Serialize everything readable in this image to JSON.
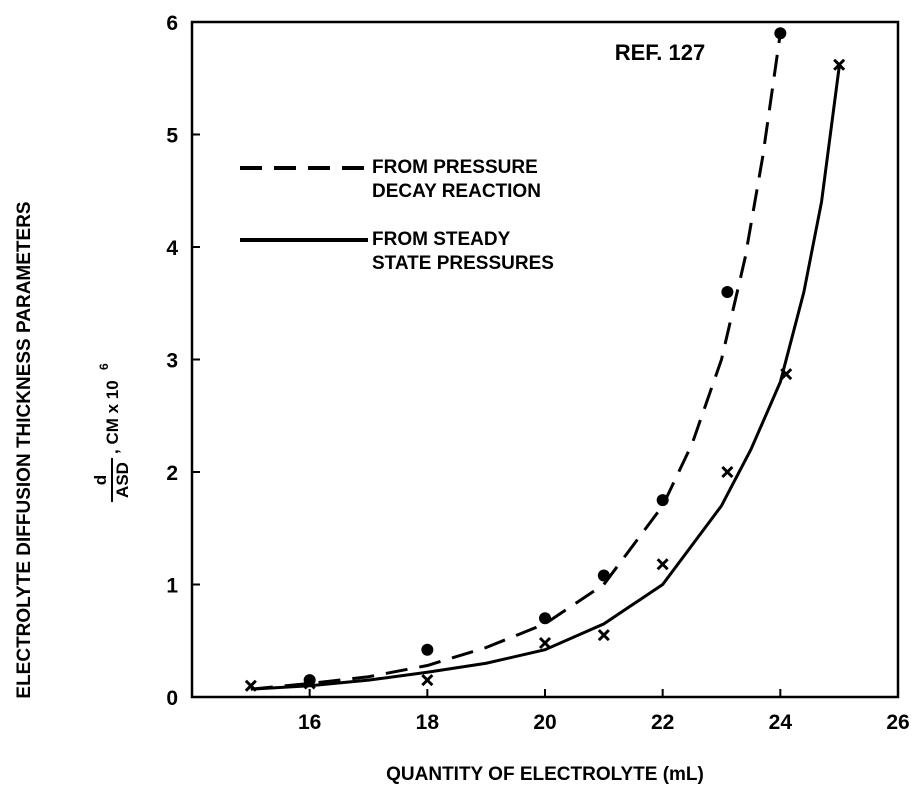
{
  "chart_data": {
    "type": "scatter",
    "annotation": "REF. 127",
    "x_label": "QUANTITY OF ELECTROLYTE (mL)",
    "y_label": "ELECTROLYTE DIFFUSION THICKNESS PARAMETERS",
    "y_label_2": {
      "numerator": "d",
      "denominator": "ASD",
      "unit": ", CM x 10",
      "exponent": "6"
    },
    "xlim": [
      14,
      26
    ],
    "xticks": [
      16,
      18,
      20,
      22,
      24,
      26
    ],
    "ylim": [
      0,
      6
    ],
    "yticks": [
      0,
      1,
      2,
      3,
      4,
      5,
      6
    ],
    "series": [
      {
        "name": "FROM PRESSURE DECAY REACTION",
        "color": "#000000",
        "line": "dashed",
        "marker": "circle",
        "x": [
          16,
          18,
          20,
          21,
          22,
          23.1,
          24
        ],
        "values": [
          0.15,
          0.42,
          0.7,
          1.08,
          1.75,
          3.6,
          5.9
        ],
        "curve_x": [
          15,
          16,
          17,
          18,
          19,
          20,
          21,
          22,
          22.5,
          23,
          23.4,
          23.7,
          24
        ],
        "curve_values": [
          0.07,
          0.12,
          0.18,
          0.28,
          0.44,
          0.65,
          1.0,
          1.7,
          2.25,
          3.0,
          3.9,
          4.8,
          5.9
        ]
      },
      {
        "name": "FROM STEADY STATE PRESSURES",
        "color": "#000000",
        "line": "solid",
        "marker": "cross",
        "x": [
          15,
          16,
          18,
          20,
          21,
          22,
          23.1,
          24.1,
          25
        ],
        "values": [
          0.1,
          0.12,
          0.15,
          0.48,
          0.55,
          1.18,
          2.0,
          2.87,
          5.62
        ],
        "curve_x": [
          15,
          16,
          17,
          18,
          19,
          20,
          21,
          22,
          23,
          23.5,
          24,
          24.4,
          24.7,
          25
        ],
        "curve_values": [
          0.07,
          0.1,
          0.15,
          0.22,
          0.3,
          0.42,
          0.65,
          1.0,
          1.7,
          2.2,
          2.8,
          3.6,
          4.4,
          5.6
        ]
      }
    ]
  }
}
